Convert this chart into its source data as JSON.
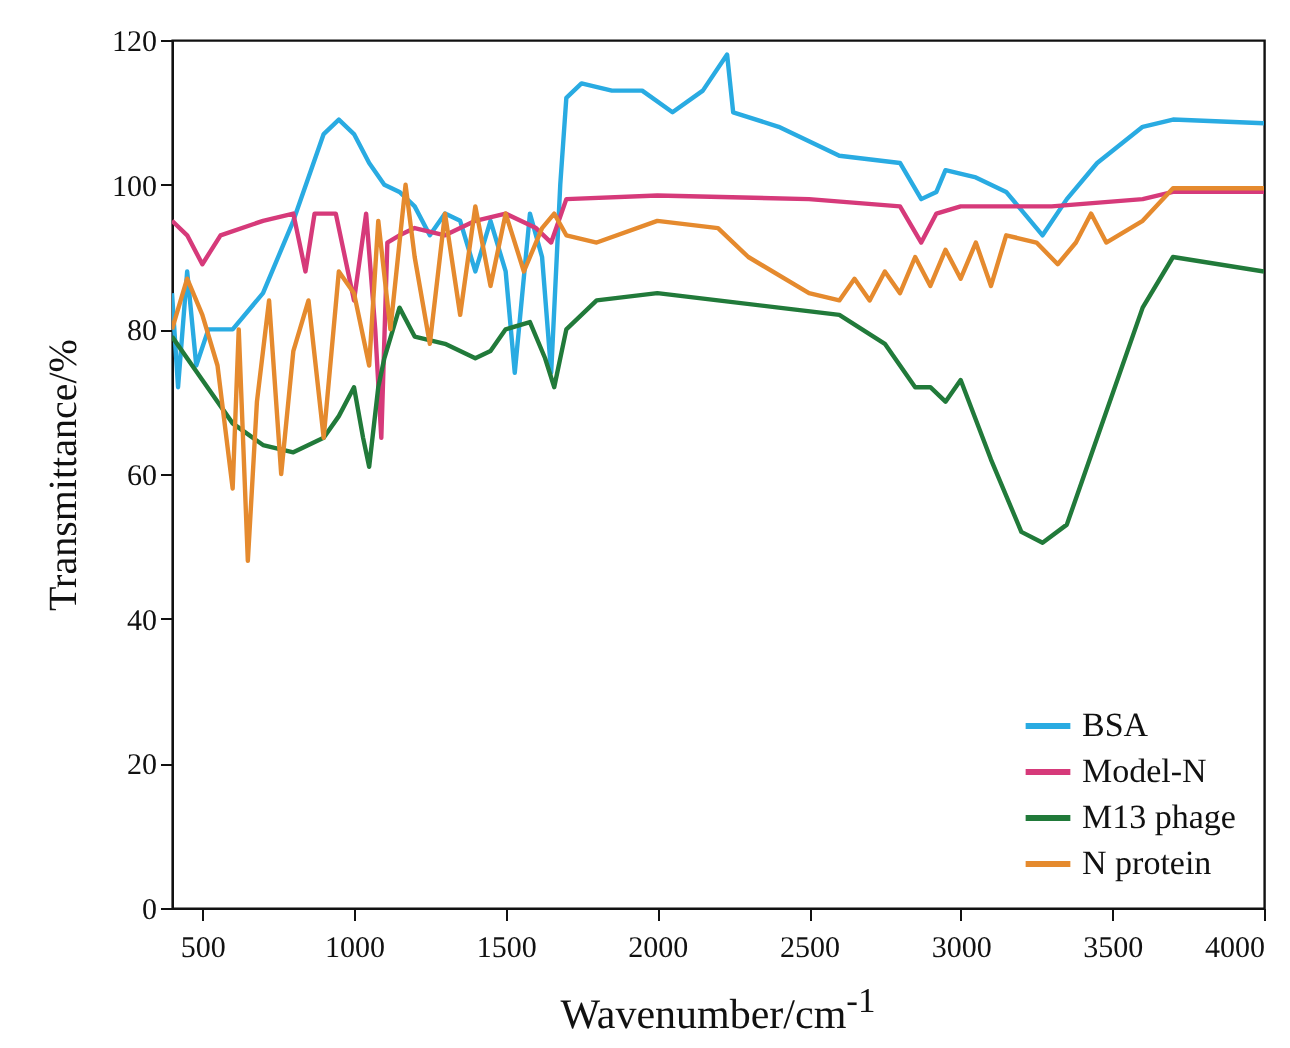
{
  "chart_data": {
    "type": "line",
    "xlabel": "Wavenumber/cm$^{-1}$",
    "ylabel": "Transmittance/%",
    "xlim": [
      400,
      4000
    ],
    "xticks": [
      500,
      1000,
      1500,
      2000,
      2500,
      3000,
      3500,
      4000
    ],
    "ylim": [
      0,
      120
    ],
    "yticks": [
      0,
      20,
      40,
      60,
      80,
      100,
      120
    ],
    "legend": "bottom right",
    "grid": false,
    "marker": "none",
    "series": [
      {
        "name": "BSA",
        "color": "#29abe2",
        "x": [
          400,
          420,
          450,
          480,
          520,
          600,
          700,
          800,
          900,
          950,
          1000,
          1050,
          1100,
          1150,
          1200,
          1250,
          1300,
          1350,
          1400,
          1450,
          1500,
          1530,
          1580,
          1620,
          1650,
          1680,
          1700,
          1750,
          1850,
          1950,
          2050,
          2150,
          2230,
          2250,
          2400,
          2600,
          2800,
          2870,
          2920,
          2950,
          3050,
          3150,
          3270,
          3350,
          3450,
          3600,
          3700,
          4000
        ],
        "values": [
          85,
          72,
          88,
          75,
          80,
          80,
          85,
          95,
          107,
          109,
          107,
          103,
          100,
          99,
          97,
          93,
          96,
          95,
          88,
          95,
          88,
          74,
          96,
          90,
          74,
          100,
          112,
          114,
          113,
          113,
          110,
          113,
          118,
          110,
          108,
          104,
          103,
          98,
          99,
          102,
          101,
          99,
          93,
          98,
          103,
          108,
          109,
          108.5
        ]
      },
      {
        "name": "Model-N",
        "color": "#d63a7a",
        "x": [
          400,
          450,
          500,
          560,
          700,
          800,
          840,
          870,
          940,
          1000,
          1040,
          1070,
          1090,
          1110,
          1150,
          1200,
          1300,
          1400,
          1500,
          1600,
          1650,
          1700,
          2000,
          2500,
          2800,
          2870,
          2920,
          3000,
          3300,
          3600,
          3700,
          4000
        ],
        "values": [
          95,
          93,
          89,
          93,
          95,
          96,
          88,
          96,
          96,
          84,
          96,
          80,
          65,
          92,
          93,
          94,
          93,
          95,
          96,
          94,
          92,
          98,
          98.5,
          98,
          97,
          92,
          96,
          97,
          97,
          98,
          99,
          99
        ]
      },
      {
        "name": "M13 phage",
        "color": "#217a3a",
        "x": [
          400,
          500,
          600,
          700,
          800,
          900,
          950,
          1000,
          1030,
          1050,
          1080,
          1100,
          1150,
          1200,
          1300,
          1400,
          1450,
          1500,
          1580,
          1630,
          1660,
          1700,
          1800,
          2000,
          2200,
          2400,
          2600,
          2750,
          2850,
          2900,
          2950,
          3000,
          3100,
          3200,
          3270,
          3350,
          3450,
          3600,
          3700,
          4000
        ],
        "values": [
          79,
          73,
          67,
          64,
          63,
          65,
          68,
          72,
          65,
          61,
          72,
          76,
          83,
          79,
          78,
          76,
          77,
          80,
          81,
          76,
          72,
          80,
          84,
          85,
          84,
          83,
          82,
          78,
          72,
          72,
          70,
          73,
          62,
          52,
          50.5,
          53,
          65,
          83,
          90,
          88
        ]
      },
      {
        "name": "N protein",
        "color": "#e58a2e",
        "x": [
          400,
          450,
          500,
          550,
          600,
          620,
          650,
          680,
          720,
          760,
          800,
          850,
          900,
          950,
          1000,
          1050,
          1080,
          1120,
          1170,
          1200,
          1250,
          1300,
          1350,
          1400,
          1450,
          1500,
          1560,
          1620,
          1660,
          1700,
          1800,
          2000,
          2200,
          2300,
          2500,
          2600,
          2650,
          2700,
          2750,
          2800,
          2850,
          2900,
          2950,
          3000,
          3050,
          3100,
          3150,
          3250,
          3320,
          3380,
          3430,
          3480,
          3600,
          3700,
          4000
        ],
        "values": [
          80,
          87,
          82,
          75,
          58,
          80,
          48,
          70,
          84,
          60,
          77,
          84,
          65,
          88,
          85,
          75,
          95,
          80,
          100,
          90,
          78,
          96,
          82,
          97,
          86,
          96,
          88,
          94,
          96,
          93,
          92,
          95,
          94,
          90,
          85,
          84,
          87,
          84,
          88,
          85,
          90,
          86,
          91,
          87,
          92,
          86,
          93,
          92,
          89,
          92,
          96,
          92,
          95,
          99.5,
          99.5
        ]
      }
    ]
  }
}
